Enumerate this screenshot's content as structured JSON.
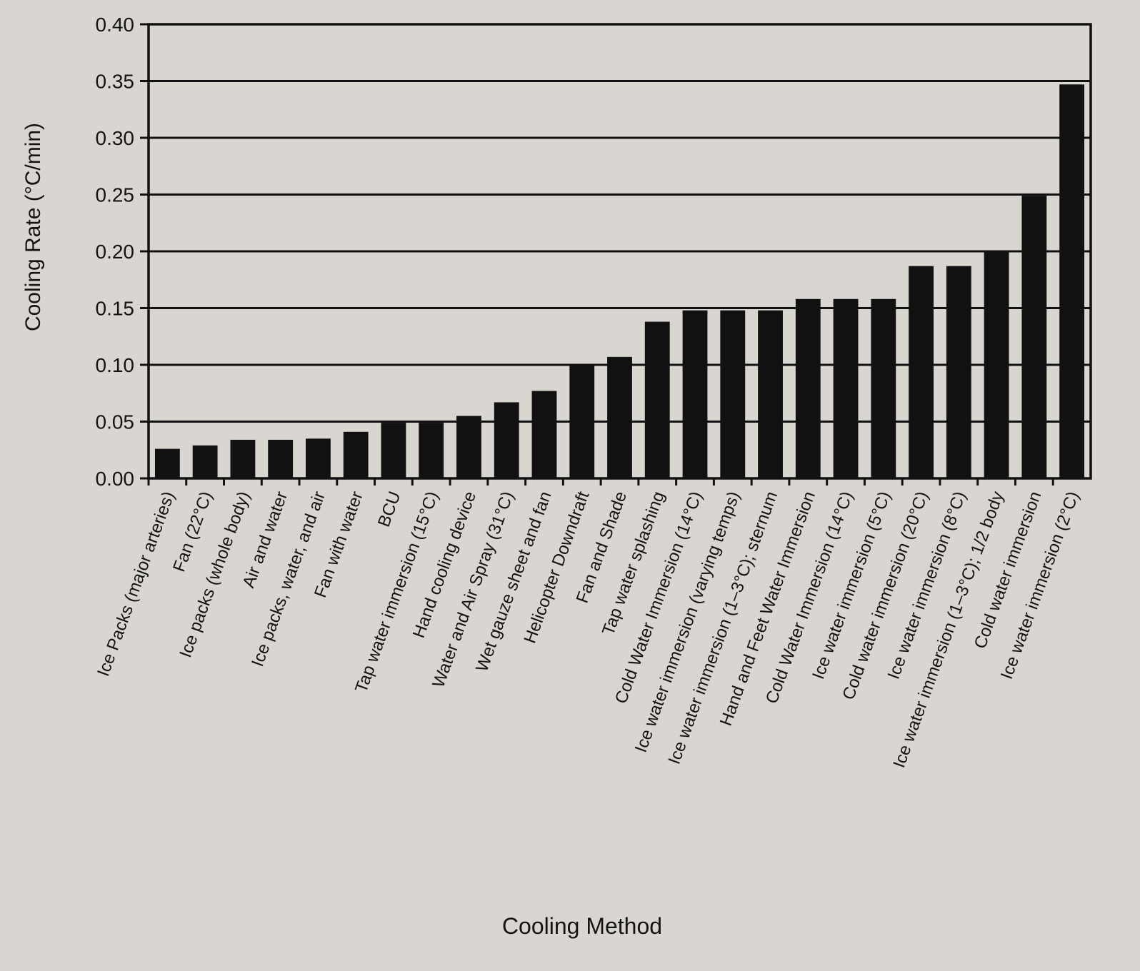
{
  "chart_data": {
    "type": "bar",
    "title": "",
    "xlabel": "Cooling Method",
    "ylabel": "Cooling Rate (°C/min)",
    "ylim": [
      0,
      0.4
    ],
    "yticks": [
      "0.00",
      "0.05",
      "0.10",
      "0.15",
      "0.20",
      "0.25",
      "0.30",
      "0.35",
      "0.40"
    ],
    "grid": "horizontal",
    "legend": "none",
    "colors": {
      "bar": "#111111",
      "background": "#d9d6d1",
      "grid": "#111111"
    },
    "categories": [
      "Ice Packs (major arteries)",
      "Fan (22°C)",
      "Ice packs (whole body)",
      "Air and water",
      "Ice packs, water, and air",
      "Fan with water",
      "BCU",
      "Tap water immersion (15°C)",
      "Hand cooling device",
      "Water and Air Spray (31°C)",
      "Wet gauze sheet and fan",
      "Helicopter Downdraft",
      "Fan and Shade",
      "Tap water splashing",
      "Cold Water Immersion (14°C)",
      "Ice water immersion (varying temps)",
      "Ice water immersion (1–3°C); sternum",
      "Hand and Feet Water Immersion",
      "Cold Water Immersion (14°C)",
      "Ice water immersion (5°C)",
      "Cold water immersion (20°C)",
      "Ice water immersion (8°C)",
      "Ice water immersion (1–3°C); 1/2 body",
      "Cold water immersion",
      "Ice water immersion (2°C)"
    ],
    "values": [
      0.026,
      0.029,
      0.034,
      0.034,
      0.035,
      0.041,
      0.049,
      0.049,
      0.055,
      0.067,
      0.077,
      0.1,
      0.107,
      0.138,
      0.148,
      0.148,
      0.148,
      0.158,
      0.158,
      0.158,
      0.187,
      0.187,
      0.2,
      0.249,
      0.347
    ]
  }
}
